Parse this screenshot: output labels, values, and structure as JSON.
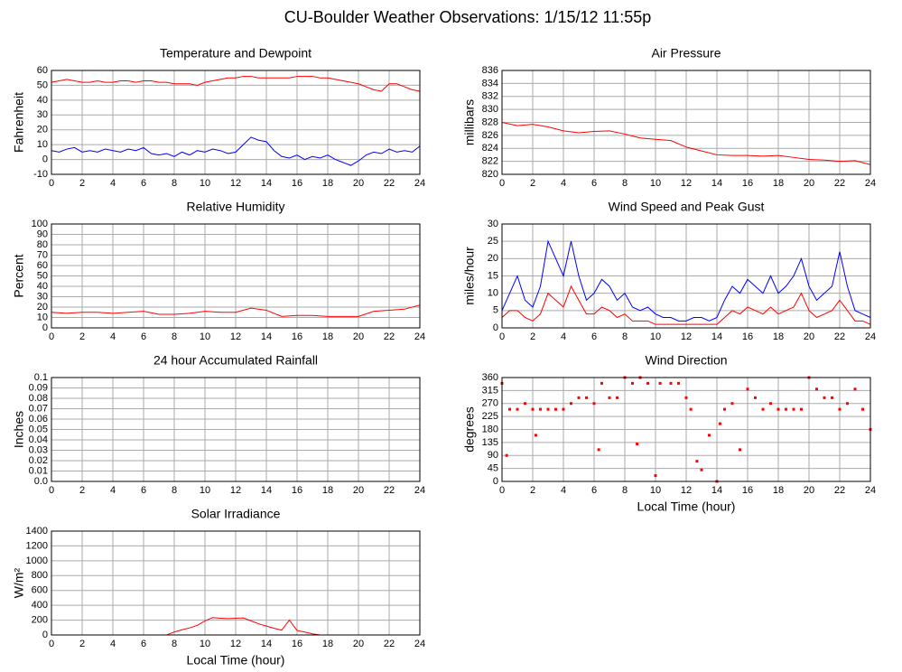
{
  "title": "CU-Boulder Weather Observations: 1/15/12 11:55p",
  "chart_data": [
    {
      "type": "line",
      "title": "Temperature and Dewpoint",
      "ylabel": "Fahrenheit",
      "x": [
        0,
        0.5,
        1,
        1.5,
        2,
        2.5,
        3,
        3.5,
        4,
        4.5,
        5,
        5.5,
        6,
        6.5,
        7,
        7.5,
        8,
        8.5,
        9,
        9.5,
        10,
        10.5,
        11,
        11.5,
        12,
        12.5,
        13,
        13.5,
        14,
        14.5,
        15,
        15.5,
        16,
        16.5,
        17,
        17.5,
        18,
        18.5,
        19,
        19.5,
        20,
        20.5,
        21,
        21.5,
        22,
        22.5,
        23,
        23.5,
        24
      ],
      "series": [
        {
          "color": "#ff0000",
          "values": [
            52,
            53,
            54,
            53,
            52,
            52,
            53,
            52,
            52,
            53,
            53,
            52,
            53,
            53,
            52,
            52,
            51,
            51,
            51,
            50,
            52,
            53,
            54,
            55,
            55,
            56,
            56,
            55,
            55,
            55,
            55,
            55,
            56,
            56,
            56,
            55,
            55,
            54,
            53,
            52,
            51,
            49,
            47,
            46,
            51,
            51,
            49,
            47,
            46
          ]
        },
        {
          "color": "#0000ff",
          "values": [
            6,
            5,
            7,
            8,
            5,
            6,
            5,
            7,
            6,
            5,
            7,
            6,
            8,
            4,
            3,
            4,
            2,
            5,
            3,
            6,
            5,
            7,
            6,
            4,
            5,
            10,
            15,
            13,
            12,
            6,
            2,
            1,
            3,
            0,
            2,
            1,
            3,
            0,
            -2,
            -4,
            -1,
            3,
            5,
            4,
            7,
            5,
            6,
            5,
            9
          ]
        }
      ],
      "xlim": [
        0,
        24
      ],
      "xticks": [
        0,
        2,
        4,
        6,
        8,
        10,
        12,
        14,
        16,
        18,
        20,
        22,
        24
      ],
      "ylim": [
        -10,
        60
      ],
      "yticks": [
        -10,
        0,
        10,
        20,
        30,
        40,
        50,
        60
      ],
      "grid": true
    },
    {
      "type": "line",
      "title": "Air Pressure",
      "ylabel": "millibars",
      "x": [
        0,
        1,
        2,
        3,
        4,
        5,
        6,
        7,
        8,
        9,
        10,
        11,
        12,
        13,
        14,
        15,
        16,
        17,
        18,
        19,
        20,
        21,
        22,
        23,
        24
      ],
      "series": [
        {
          "color": "#ff0000",
          "values": [
            828,
            827.5,
            827.7,
            827.3,
            826.7,
            826.4,
            826.6,
            826.7,
            826.2,
            825.6,
            825.4,
            825.2,
            824.2,
            823.6,
            823,
            822.9,
            822.9,
            822.8,
            822.9,
            822.6,
            822.3,
            822.2,
            822,
            822.1,
            821.5
          ]
        }
      ],
      "xlim": [
        0,
        24
      ],
      "xticks": [
        0,
        2,
        4,
        6,
        8,
        10,
        12,
        14,
        16,
        18,
        20,
        22,
        24
      ],
      "ylim": [
        820,
        836
      ],
      "yticks": [
        820,
        822,
        824,
        826,
        828,
        830,
        832,
        834,
        836
      ],
      "grid": true
    },
    {
      "type": "line",
      "title": "Relative Humidity",
      "ylabel": "Percent",
      "x": [
        0,
        1,
        2,
        3,
        4,
        5,
        6,
        7,
        8,
        9,
        10,
        11,
        12,
        13,
        14,
        15,
        16,
        17,
        18,
        19,
        20,
        21,
        22,
        23,
        24
      ],
      "series": [
        {
          "color": "#ff0000",
          "values": [
            15,
            14,
            15,
            15,
            14,
            15,
            16,
            13,
            13,
            14,
            16,
            15,
            15,
            19,
            17,
            11,
            12,
            12,
            11,
            11,
            11,
            16,
            17,
            18,
            22
          ]
        }
      ],
      "xlim": [
        0,
        24
      ],
      "xticks": [
        0,
        2,
        4,
        6,
        8,
        10,
        12,
        14,
        16,
        18,
        20,
        22,
        24
      ],
      "ylim": [
        0,
        100
      ],
      "yticks": [
        0,
        10,
        20,
        30,
        40,
        50,
        60,
        70,
        80,
        90,
        100
      ],
      "grid": true
    },
    {
      "type": "line",
      "title": "Wind Speed and Peak Gust",
      "ylabel": "miles/hour",
      "x": [
        0,
        0.5,
        1,
        1.5,
        2,
        2.5,
        3,
        3.5,
        4,
        4.5,
        5,
        5.5,
        6,
        6.5,
        7,
        7.5,
        8,
        8.5,
        9,
        9.5,
        10,
        10.5,
        11,
        11.5,
        12,
        12.5,
        13,
        13.5,
        14,
        14.5,
        15,
        15.5,
        16,
        16.5,
        17,
        17.5,
        18,
        18.5,
        19,
        19.5,
        20,
        20.5,
        21,
        21.5,
        22,
        22.5,
        23,
        23.5,
        24
      ],
      "series": [
        {
          "color": "#0000ff",
          "values": [
            5,
            10,
            15,
            8,
            6,
            12,
            25,
            20,
            15,
            25,
            15,
            8,
            10,
            14,
            12,
            8,
            10,
            6,
            5,
            6,
            4,
            3,
            3,
            2,
            2,
            3,
            3,
            2,
            3,
            8,
            12,
            10,
            14,
            12,
            10,
            15,
            10,
            12,
            15,
            20,
            12,
            8,
            10,
            12,
            22,
            12,
            5,
            4,
            3
          ]
        },
        {
          "color": "#ff0000",
          "values": [
            3,
            5,
            5,
            3,
            2,
            4,
            10,
            8,
            6,
            12,
            8,
            4,
            4,
            6,
            5,
            3,
            4,
            2,
            2,
            2,
            1,
            1,
            1,
            1,
            1,
            1,
            1,
            1,
            1,
            3,
            5,
            4,
            6,
            5,
            4,
            6,
            4,
            5,
            6,
            10,
            5,
            3,
            4,
            5,
            8,
            5,
            2,
            2,
            1
          ]
        }
      ],
      "xlim": [
        0,
        24
      ],
      "xticks": [
        0,
        2,
        4,
        6,
        8,
        10,
        12,
        14,
        16,
        18,
        20,
        22,
        24
      ],
      "ylim": [
        0,
        30
      ],
      "yticks": [
        0,
        5,
        10,
        15,
        20,
        25,
        30
      ],
      "grid": true
    },
    {
      "type": "line",
      "title": "24 hour Accumulated Rainfall",
      "ylabel": "Inches",
      "x": [
        0,
        1,
        2,
        3,
        4,
        5,
        6,
        7,
        8,
        9,
        10,
        11,
        12,
        13,
        14,
        15,
        16,
        17,
        18,
        19,
        20,
        21,
        22,
        23,
        24
      ],
      "series": [
        {
          "color": "#ff0000",
          "values": [
            0,
            0,
            0,
            0,
            0,
            0,
            0,
            0,
            0,
            0,
            0,
            0,
            0,
            0,
            0,
            0,
            0,
            0,
            0,
            0,
            0,
            0,
            0,
            0,
            0
          ]
        }
      ],
      "xlim": [
        0,
        24
      ],
      "xticks": [
        0,
        2,
        4,
        6,
        8,
        10,
        12,
        14,
        16,
        18,
        20,
        22,
        24
      ],
      "ylim": [
        0,
        0.1
      ],
      "yticks": [
        {
          "value": 0,
          "label": "0.0"
        },
        0.01,
        0.02,
        0.03,
        0.04,
        0.05,
        0.06,
        0.07,
        0.08,
        0.09,
        0.1
      ],
      "grid": true
    },
    {
      "type": "scatter",
      "title": "Wind Direction",
      "ylabel": "degrees",
      "xlabel": "Local Time (hour)",
      "x": [
        0,
        0.3,
        0.5,
        1,
        1.5,
        2,
        2.2,
        2.5,
        3,
        3.5,
        4,
        4.5,
        5,
        5.5,
        6,
        6.3,
        6.5,
        7,
        7.5,
        8,
        8.5,
        8.8,
        9,
        9.5,
        10,
        10.3,
        11,
        11.5,
        12,
        12.3,
        12.7,
        13,
        13.5,
        14,
        14.2,
        14.5,
        15,
        15.5,
        16,
        16.5,
        17,
        17.5,
        18,
        18.5,
        19,
        19.5,
        20,
        20.5,
        21,
        21.5,
        22,
        22.5,
        23,
        23.5,
        24
      ],
      "color": "#ff0000",
      "values": [
        340,
        90,
        250,
        250,
        270,
        250,
        160,
        250,
        250,
        250,
        250,
        270,
        290,
        290,
        270,
        110,
        340,
        290,
        290,
        360,
        340,
        130,
        360,
        340,
        20,
        340,
        340,
        340,
        290,
        250,
        70,
        40,
        160,
        0,
        200,
        250,
        270,
        110,
        320,
        290,
        250,
        270,
        250,
        250,
        250,
        250,
        360,
        320,
        290,
        290,
        250,
        270,
        320,
        250,
        180
      ],
      "xlim": [
        0,
        24
      ],
      "xticks": [
        0,
        2,
        4,
        6,
        8,
        10,
        12,
        14,
        16,
        18,
        20,
        22,
        24
      ],
      "ylim": [
        0,
        360
      ],
      "yticks": [
        0,
        45,
        90,
        135,
        180,
        225,
        270,
        315,
        360
      ],
      "grid": true
    },
    {
      "type": "line",
      "title": "Solar Irradiance",
      "ylabel": "W/m²",
      "xlabel": "Local Time (hour)",
      "x": [
        0,
        0.5,
        1,
        1.5,
        2,
        2.5,
        3,
        3.5,
        4,
        4.5,
        5,
        5.5,
        6,
        6.5,
        7,
        7.5,
        8,
        8.5,
        9,
        9.5,
        10,
        10.5,
        11,
        11.5,
        12,
        12.5,
        13,
        13.5,
        14,
        14.5,
        15,
        15.5,
        16,
        16.5,
        17,
        17.5,
        18,
        18.5,
        19,
        19.5,
        20,
        20.5,
        21,
        21.5,
        22,
        22.5,
        23,
        23.5,
        24
      ],
      "series": [
        {
          "color": "#ff0000",
          "values": [
            0,
            0,
            0,
            0,
            0,
            0,
            0,
            0,
            0,
            0,
            0,
            0,
            0,
            0,
            0,
            0,
            40,
            70,
            95,
            130,
            190,
            235,
            225,
            220,
            225,
            230,
            190,
            150,
            120,
            90,
            65,
            200,
            60,
            40,
            15,
            0,
            0,
            0,
            0,
            0,
            0,
            0,
            0,
            0,
            0,
            0,
            0,
            0,
            0
          ]
        }
      ],
      "xlim": [
        0,
        24
      ],
      "xticks": [
        0,
        2,
        4,
        6,
        8,
        10,
        12,
        14,
        16,
        18,
        20,
        22,
        24
      ],
      "ylim": [
        0,
        1400
      ],
      "yticks": [
        0,
        200,
        400,
        600,
        800,
        1000,
        1200,
        1400
      ],
      "grid": true
    }
  ]
}
